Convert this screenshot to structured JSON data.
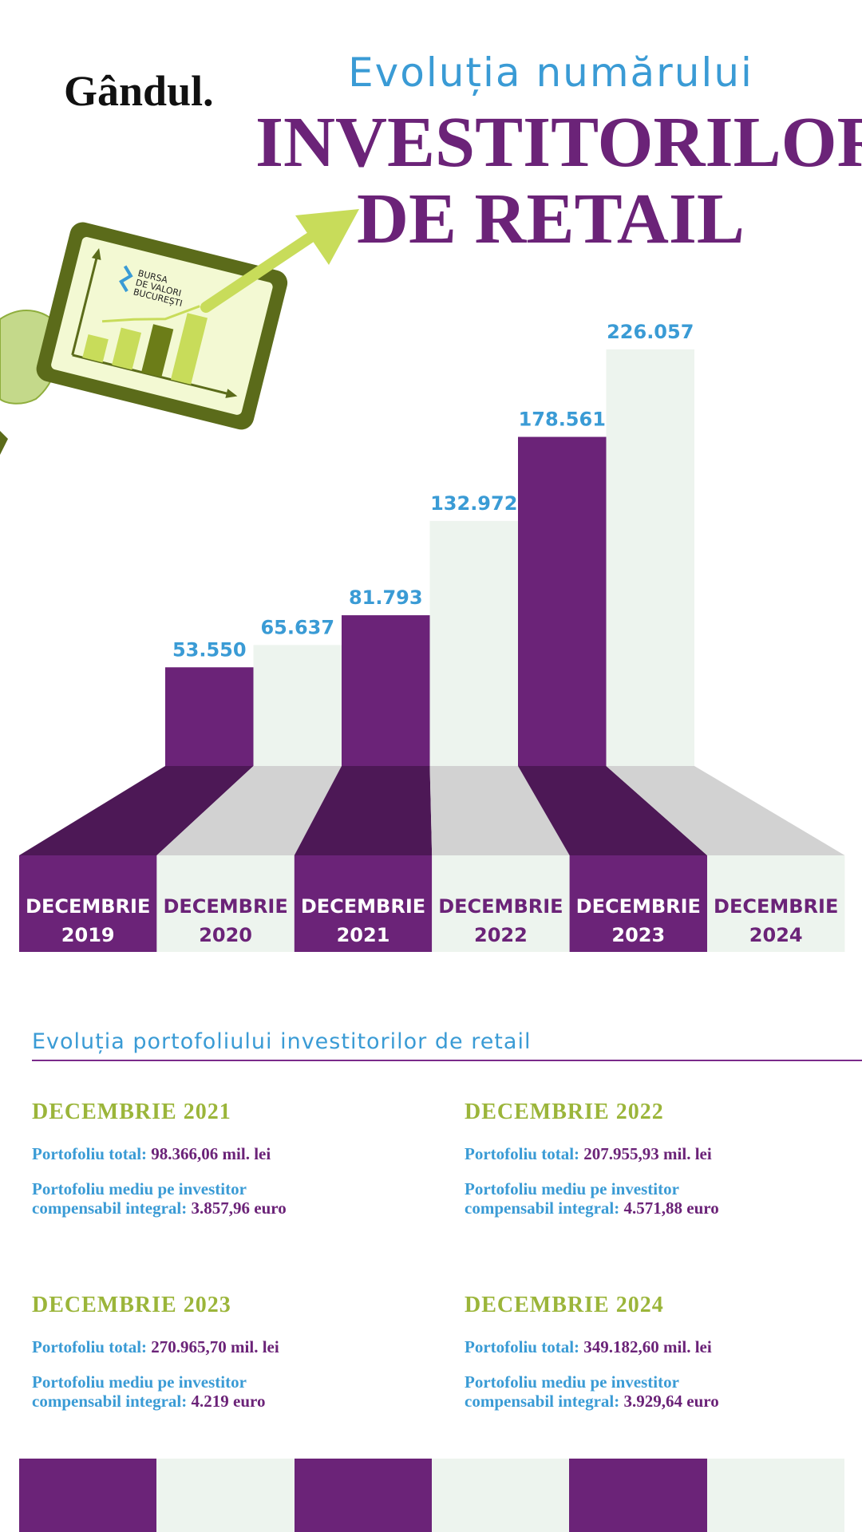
{
  "brand": {
    "logo_text": "Gândul."
  },
  "header": {
    "title_line1": "Evoluția numărului",
    "title_line2": "INVESTITORILOR",
    "title_line3": "DE RETAIL"
  },
  "tablet": {
    "bvb_logo_lines": [
      "BURSA",
      "DE VALORI",
      "BUCUREȘTI"
    ]
  },
  "colors": {
    "purple": "#6b2378",
    "purple_dark": "#4d1856",
    "pale": "#edf4ee",
    "grey": "#d2d2d2",
    "blue": "#3a9bd5",
    "green": "#9bb53a",
    "lime": "#c8dc5a"
  },
  "chart_data": {
    "type": "bar",
    "categories": [
      "DECEMBRIE 2019",
      "DECEMBRIE 2020",
      "DECEMBRIE 2021",
      "DECEMBRIE 2022",
      "DECEMBRIE 2023",
      "DECEMBRIE 2024"
    ],
    "category_lines": [
      [
        "DECEMBRIE",
        "2019"
      ],
      [
        "DECEMBRIE",
        "2020"
      ],
      [
        "DECEMBRIE",
        "2021"
      ],
      [
        "DECEMBRIE",
        "2022"
      ],
      [
        "DECEMBRIE",
        "2023"
      ],
      [
        "DECEMBRIE",
        "2024"
      ]
    ],
    "values": [
      53550,
      65637,
      81793,
      132972,
      178561,
      226057
    ],
    "value_labels": [
      "53.550",
      "65.637",
      "81.793",
      "132.972",
      "178.561",
      "226.057"
    ],
    "title": "Evoluția numărului INVESTITORILOR DE RETAIL",
    "legend": "none",
    "grid": false
  },
  "portfolio": {
    "title": "Evoluția portofoliului investitorilor de retail",
    "cards": [
      {
        "heading": "DECEMBRIE 2021",
        "total_label": "Portofoliu total:",
        "total_value": "98.366,06 mil. lei",
        "avg_label_1": "Portofoliu mediu pe investitor",
        "avg_label_2": "compensabil integral:",
        "avg_value": "3.857,96 euro"
      },
      {
        "heading": "DECEMBRIE 2022",
        "total_label": "Portofoliu total:",
        "total_value": "207.955,93 mil. lei",
        "avg_label_1": "Portofoliu mediu pe investitor",
        "avg_label_2": "compensabil integral:",
        "avg_value": "4.571,88 euro"
      },
      {
        "heading": "DECEMBRIE 2023",
        "total_label": "Portofoliu total:",
        "total_value": "270.965,70 mil. lei",
        "avg_label_1": "Portofoliu mediu pe investitor",
        "avg_label_2": "compensabil integral:",
        "avg_value": "4.219 euro"
      },
      {
        "heading": "DECEMBRIE 2024",
        "total_label": "Portofoliu total:",
        "total_value": "349.182,60 mil. lei",
        "avg_label_1": "Portofoliu mediu pe investitor",
        "avg_label_2": "compensabil integral:",
        "avg_value": "3.929,64 euro"
      }
    ]
  }
}
